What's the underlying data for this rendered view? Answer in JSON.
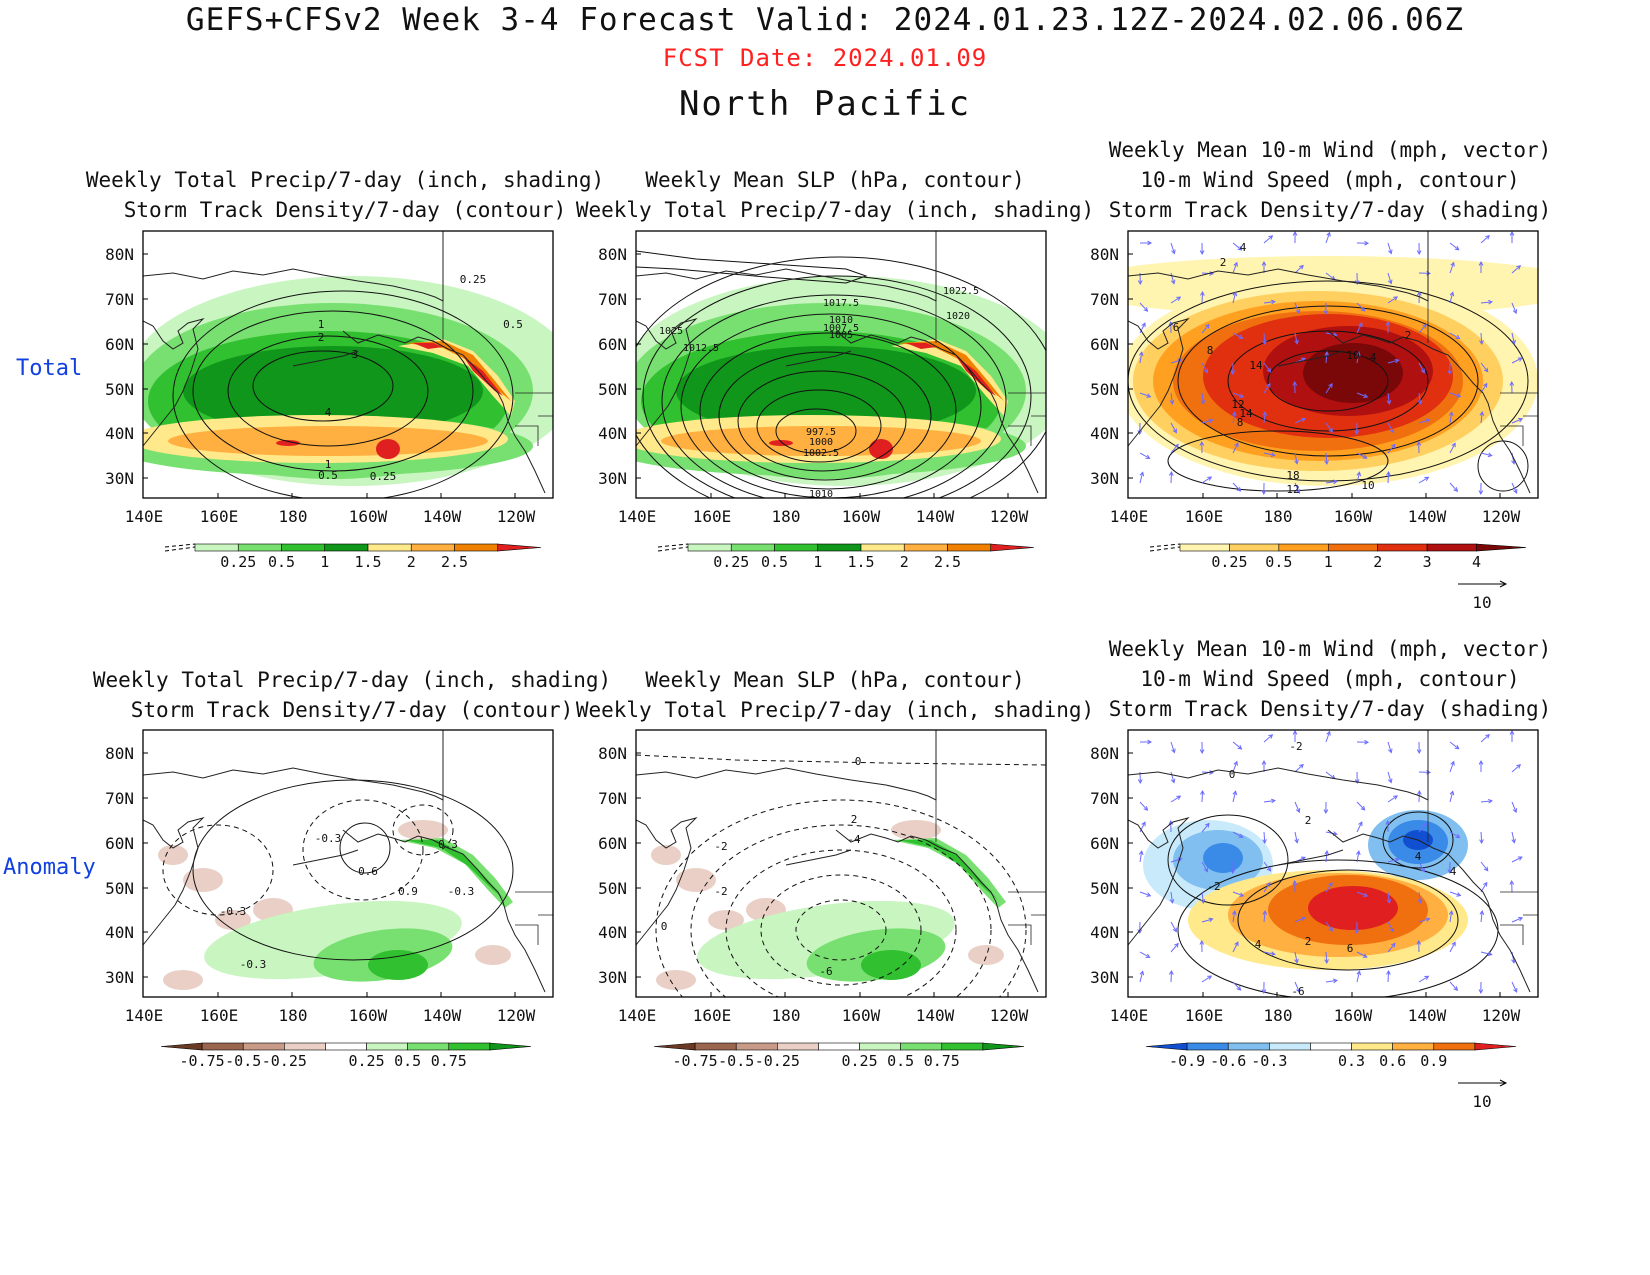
{
  "header": {
    "title": "GEFS+CFSv2 Week 3-4 Forecast      Valid: 2024.01.23.12Z-2024.02.06.06Z",
    "fcst_date": "FCST Date: 2024.01.09",
    "region": "North Pacific"
  },
  "rows": [
    "Total",
    "Anomaly"
  ],
  "axes": {
    "lat_labels": [
      "80N",
      "70N",
      "60N",
      "50N",
      "40N",
      "30N"
    ],
    "lon_labels": [
      "140E",
      "160E",
      "180",
      "160W",
      "140W",
      "120W"
    ]
  },
  "titles": {
    "precip_track": [
      "Weekly Total Precip/7-day (inch, shading)",
      "Storm Track Density/7-day (contour)"
    ],
    "slp_precip": [
      "Weekly Mean SLP (hPa, contour)",
      "Weekly Total Precip/7-day (inch, shading)"
    ],
    "wind_track": [
      "Weekly Mean 10-m Wind (mph, vector)",
      "10-m Wind Speed (mph, contour)",
      "Storm Track Density/7-day (shading)"
    ]
  },
  "colorbars": {
    "precip_total": {
      "labels": [
        "0.25",
        "0.5",
        "1",
        "1.5",
        "2",
        "2.5"
      ],
      "colors": [
        "#c8f5c0",
        "#78e070",
        "#30c030",
        "#10961a",
        "#ffe98a",
        "#ffb040",
        "#f08000",
        "#e02020"
      ]
    },
    "track_total": {
      "labels": [
        "0.25",
        "0.5",
        "1",
        "2",
        "3",
        "4"
      ],
      "colors": [
        "#fff4b0",
        "#ffd060",
        "#ffa020",
        "#f07010",
        "#e03010",
        "#b01010",
        "#7a0808"
      ]
    },
    "precip_anom": {
      "labels": [
        "-0.75",
        "-0.5",
        "-0.25",
        "0.25",
        "0.5",
        "0.75"
      ],
      "colors": [
        "#6b3a24",
        "#9a6650",
        "#c89a88",
        "#e9cfc5",
        "#ffffff",
        "#c8f5c0",
        "#78e070",
        "#30c030",
        "#10961a"
      ]
    },
    "track_anom": {
      "labels": [
        "-0.9",
        "-0.6",
        "-0.3",
        "0.3",
        "0.6",
        "0.9"
      ],
      "colors": [
        "#1050d0",
        "#3a8ae8",
        "#80bff0",
        "#c8eafa",
        "#ffffff",
        "#ffe98a",
        "#ffb040",
        "#f07010",
        "#e02020"
      ]
    }
  },
  "vector_ref": "10",
  "contour_labels": {
    "p1": [
      "0.25",
      "1",
      "0.5",
      "2",
      "3",
      "4",
      "1",
      "0.5",
      "0.25"
    ],
    "p2": [
      "1017.5",
      "1022.5",
      "1020",
      "1010",
      "1007.5",
      "1005",
      "1025",
      "1012.5",
      "997.5",
      "1000",
      "1002.5",
      "1010"
    ],
    "p3": [
      "2",
      "4",
      "6",
      "8",
      "14",
      "10",
      "12",
      "14",
      "8",
      "4",
      "2",
      "18",
      "12",
      "10"
    ],
    "p4": [
      "-0.3",
      "0.3",
      "0.6",
      "0.9",
      "-0.3",
      "-0.3",
      "-0.3"
    ],
    "p5": [
      "0",
      "2",
      "-2",
      "-4",
      "-2",
      "0",
      "-6"
    ],
    "p6": [
      "-2",
      "0",
      "2",
      "4",
      "-2",
      "4",
      "2",
      "4",
      "6",
      "-6"
    ]
  }
}
